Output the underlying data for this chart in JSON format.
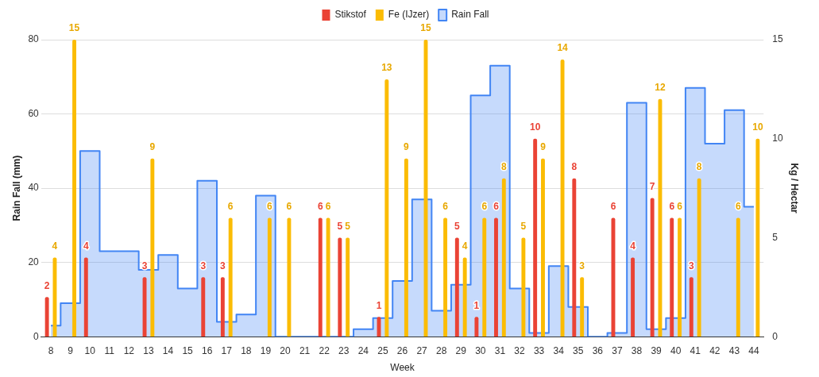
{
  "chart_data": {
    "type": "bar",
    "xlabel": "Week",
    "ylabel": "Rain Fall (mm)",
    "y2label": "Kg / Hectar",
    "categories": [
      "8",
      "9",
      "10",
      "11",
      "12",
      "13",
      "14",
      "15",
      "16",
      "17",
      "18",
      "19",
      "20",
      "21",
      "22",
      "23",
      "24",
      "25",
      "26",
      "27",
      "28",
      "29",
      "30",
      "31",
      "32",
      "33",
      "34",
      "35",
      "36",
      "37",
      "38",
      "39",
      "40",
      "41",
      "42",
      "43",
      "44"
    ],
    "series": [
      {
        "name": "Stikstof",
        "axis": "y2",
        "color": "#ea4335",
        "values": [
          2,
          null,
          4,
          null,
          null,
          3,
          null,
          null,
          3,
          3,
          null,
          null,
          null,
          null,
          6,
          5,
          null,
          1,
          null,
          null,
          null,
          5,
          1,
          6,
          null,
          10,
          null,
          8,
          null,
          6,
          4,
          7,
          6,
          3,
          null,
          null,
          null
        ],
        "value_labels": [
          "2",
          null,
          "4",
          null,
          null,
          "3",
          null,
          null,
          "3",
          "3",
          null,
          null,
          null,
          null,
          "6",
          "5",
          null,
          "1",
          null,
          null,
          null,
          "5",
          "1",
          "6",
          null,
          "10",
          null,
          "8",
          null,
          "6",
          "4",
          "7",
          "6",
          "3",
          null,
          null,
          null
        ]
      },
      {
        "name": "Fe (IJzer)",
        "axis": "y2",
        "color": "#fbbc04",
        "values": [
          4,
          15,
          null,
          null,
          null,
          9,
          null,
          null,
          null,
          6,
          null,
          6,
          6,
          null,
          6,
          5,
          null,
          13,
          9,
          15,
          6,
          4,
          6,
          8,
          5,
          9,
          14,
          3,
          null,
          null,
          null,
          12,
          6,
          8,
          null,
          6,
          10
        ],
        "value_labels": [
          "4",
          "15",
          null,
          null,
          null,
          "9",
          null,
          null,
          null,
          "6",
          null,
          "6",
          "6",
          null,
          "6",
          "5",
          null,
          "13",
          "9",
          "15",
          "6",
          "4",
          "6",
          "8",
          "5",
          "9",
          "14",
          "3",
          null,
          null,
          null,
          "12",
          "6",
          "8",
          null,
          "6",
          "10"
        ]
      },
      {
        "name": "Rain Fall",
        "type": "step",
        "axis": "y",
        "color": "#4285f4",
        "values": [
          3,
          9,
          50,
          23,
          23,
          18,
          22,
          13,
          42,
          4,
          6,
          38,
          0,
          0,
          0,
          0,
          2,
          5,
          15,
          37,
          7,
          14,
          65,
          73,
          13,
          1,
          19,
          8,
          0,
          1,
          63,
          2,
          5,
          67,
          52,
          61,
          35
        ]
      }
    ],
    "ylim": [
      0,
      80
    ],
    "yticks": [
      0,
      20,
      40,
      60,
      80
    ],
    "y2lim": [
      0,
      15
    ],
    "y2ticks": [
      0,
      5,
      10,
      15
    ],
    "grid": "y",
    "legend": "top"
  }
}
